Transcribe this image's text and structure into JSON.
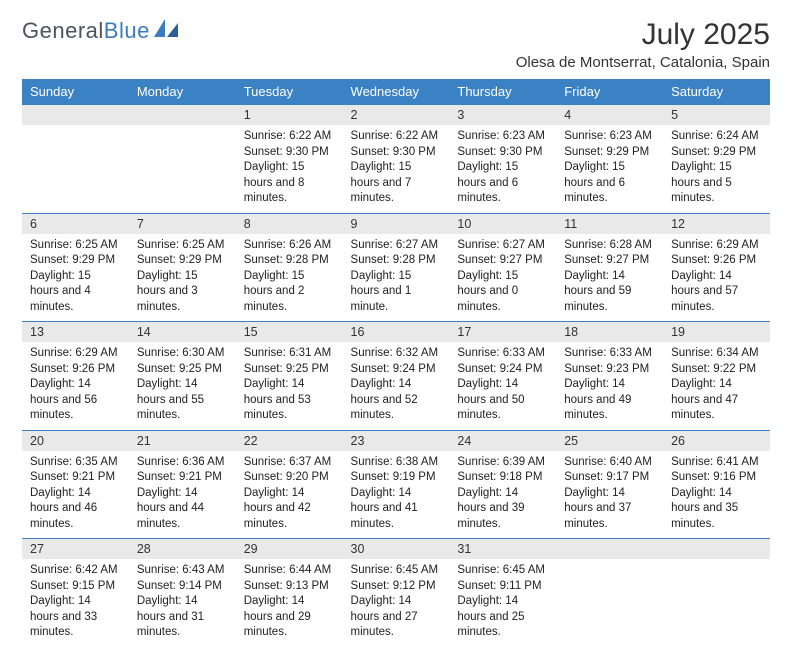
{
  "logo": {
    "text_general": "General",
    "text_blue": "Blue"
  },
  "title": "July 2025",
  "location": "Olesa de Montserrat, Catalonia, Spain",
  "colors": {
    "header_bg": "#3b82c4",
    "header_text": "#ffffff",
    "daynum_bg": "#e9e9e9",
    "row_border": "#3b82c4",
    "logo_gray": "#4a5460",
    "logo_blue": "#3b7bbf"
  },
  "day_headers": [
    "Sunday",
    "Monday",
    "Tuesday",
    "Wednesday",
    "Thursday",
    "Friday",
    "Saturday"
  ],
  "weeks": [
    [
      null,
      null,
      {
        "n": "1",
        "sr": "6:22 AM",
        "ss": "9:30 PM",
        "dl": "15 hours and 8 minutes."
      },
      {
        "n": "2",
        "sr": "6:22 AM",
        "ss": "9:30 PM",
        "dl": "15 hours and 7 minutes."
      },
      {
        "n": "3",
        "sr": "6:23 AM",
        "ss": "9:30 PM",
        "dl": "15 hours and 6 minutes."
      },
      {
        "n": "4",
        "sr": "6:23 AM",
        "ss": "9:29 PM",
        "dl": "15 hours and 6 minutes."
      },
      {
        "n": "5",
        "sr": "6:24 AM",
        "ss": "9:29 PM",
        "dl": "15 hours and 5 minutes."
      }
    ],
    [
      {
        "n": "6",
        "sr": "6:25 AM",
        "ss": "9:29 PM",
        "dl": "15 hours and 4 minutes."
      },
      {
        "n": "7",
        "sr": "6:25 AM",
        "ss": "9:29 PM",
        "dl": "15 hours and 3 minutes."
      },
      {
        "n": "8",
        "sr": "6:26 AM",
        "ss": "9:28 PM",
        "dl": "15 hours and 2 minutes."
      },
      {
        "n": "9",
        "sr": "6:27 AM",
        "ss": "9:28 PM",
        "dl": "15 hours and 1 minute."
      },
      {
        "n": "10",
        "sr": "6:27 AM",
        "ss": "9:27 PM",
        "dl": "15 hours and 0 minutes."
      },
      {
        "n": "11",
        "sr": "6:28 AM",
        "ss": "9:27 PM",
        "dl": "14 hours and 59 minutes."
      },
      {
        "n": "12",
        "sr": "6:29 AM",
        "ss": "9:26 PM",
        "dl": "14 hours and 57 minutes."
      }
    ],
    [
      {
        "n": "13",
        "sr": "6:29 AM",
        "ss": "9:26 PM",
        "dl": "14 hours and 56 minutes."
      },
      {
        "n": "14",
        "sr": "6:30 AM",
        "ss": "9:25 PM",
        "dl": "14 hours and 55 minutes."
      },
      {
        "n": "15",
        "sr": "6:31 AM",
        "ss": "9:25 PM",
        "dl": "14 hours and 53 minutes."
      },
      {
        "n": "16",
        "sr": "6:32 AM",
        "ss": "9:24 PM",
        "dl": "14 hours and 52 minutes."
      },
      {
        "n": "17",
        "sr": "6:33 AM",
        "ss": "9:24 PM",
        "dl": "14 hours and 50 minutes."
      },
      {
        "n": "18",
        "sr": "6:33 AM",
        "ss": "9:23 PM",
        "dl": "14 hours and 49 minutes."
      },
      {
        "n": "19",
        "sr": "6:34 AM",
        "ss": "9:22 PM",
        "dl": "14 hours and 47 minutes."
      }
    ],
    [
      {
        "n": "20",
        "sr": "6:35 AM",
        "ss": "9:21 PM",
        "dl": "14 hours and 46 minutes."
      },
      {
        "n": "21",
        "sr": "6:36 AM",
        "ss": "9:21 PM",
        "dl": "14 hours and 44 minutes."
      },
      {
        "n": "22",
        "sr": "6:37 AM",
        "ss": "9:20 PM",
        "dl": "14 hours and 42 minutes."
      },
      {
        "n": "23",
        "sr": "6:38 AM",
        "ss": "9:19 PM",
        "dl": "14 hours and 41 minutes."
      },
      {
        "n": "24",
        "sr": "6:39 AM",
        "ss": "9:18 PM",
        "dl": "14 hours and 39 minutes."
      },
      {
        "n": "25",
        "sr": "6:40 AM",
        "ss": "9:17 PM",
        "dl": "14 hours and 37 minutes."
      },
      {
        "n": "26",
        "sr": "6:41 AM",
        "ss": "9:16 PM",
        "dl": "14 hours and 35 minutes."
      }
    ],
    [
      {
        "n": "27",
        "sr": "6:42 AM",
        "ss": "9:15 PM",
        "dl": "14 hours and 33 minutes."
      },
      {
        "n": "28",
        "sr": "6:43 AM",
        "ss": "9:14 PM",
        "dl": "14 hours and 31 minutes."
      },
      {
        "n": "29",
        "sr": "6:44 AM",
        "ss": "9:13 PM",
        "dl": "14 hours and 29 minutes."
      },
      {
        "n": "30",
        "sr": "6:45 AM",
        "ss": "9:12 PM",
        "dl": "14 hours and 27 minutes."
      },
      {
        "n": "31",
        "sr": "6:45 AM",
        "ss": "9:11 PM",
        "dl": "14 hours and 25 minutes."
      },
      null,
      null
    ]
  ],
  "labels": {
    "sunrise": "Sunrise:",
    "sunset": "Sunset:",
    "daylight": "Daylight:"
  }
}
